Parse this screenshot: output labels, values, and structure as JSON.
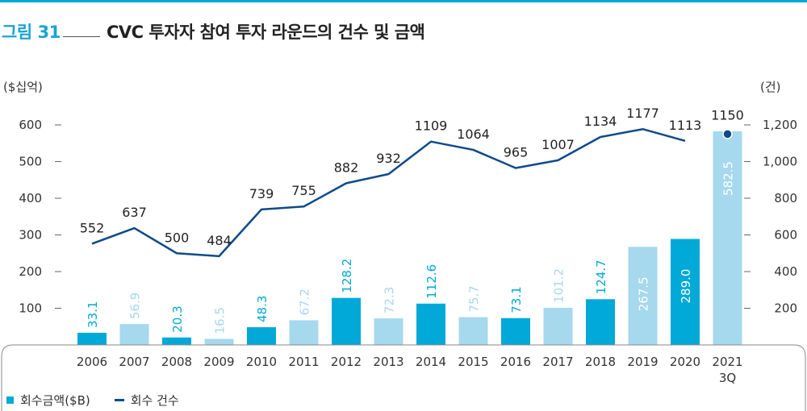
{
  "header": {
    "figure_label": "그림 31",
    "title": "CVC 투자자 참여 투자 라운드의 건수 및 금액"
  },
  "legend": {
    "bar_label": "회수금액($B)",
    "line_label": "회수 건수"
  },
  "colors": {
    "bar_dark": "#00a9d7",
    "bar_light": "#a6d8ee",
    "line": "#0f4a8a",
    "accent": "#1aa3d6"
  },
  "chart_data": {
    "type": "bar",
    "left_unit": "($십억)",
    "right_unit": "(건)",
    "categories": [
      "2006",
      "2007",
      "2008",
      "2009",
      "2010",
      "2011",
      "2012",
      "2013",
      "2014",
      "2015",
      "2016",
      "2017",
      "2018",
      "2019",
      "2020",
      "2021\n3Q"
    ],
    "series": [
      {
        "name": "회수금액($B)",
        "type": "bar",
        "axis": "left",
        "values": [
          33.1,
          56.9,
          20.3,
          16.5,
          48.3,
          67.2,
          128.2,
          72.3,
          112.6,
          75.7,
          73.1,
          101.2,
          124.7,
          267.5,
          289.0,
          582.5
        ],
        "labels": [
          "33.1",
          "56.9",
          "20.3",
          "16.5",
          "48.3",
          "67.2",
          "128.2",
          "72.3",
          "112.6",
          "75.7",
          "73.1",
          "101.2",
          "124.7",
          "267.5",
          "289.0",
          "582.5"
        ],
        "shade": [
          "dark",
          "light",
          "dark",
          "light",
          "dark",
          "light",
          "dark",
          "light",
          "dark",
          "light",
          "dark",
          "light",
          "dark",
          "light",
          "dark",
          "light"
        ]
      },
      {
        "name": "회수 건수",
        "type": "line",
        "axis": "right",
        "values": [
          552,
          637,
          500,
          484,
          739,
          755,
          882,
          932,
          1109,
          1064,
          965,
          1007,
          1134,
          1177,
          1113,
          1150
        ],
        "labels": [
          "552",
          "637",
          "500",
          "484",
          "739",
          "755",
          "882",
          "932",
          "1109",
          "1064",
          "965",
          "1007",
          "1134",
          "1177",
          "1113",
          "1150"
        ],
        "marker_only_last": true
      }
    ],
    "left_axis": {
      "ticks": [
        100,
        200,
        300,
        400,
        500,
        600
      ],
      "tick_labels": [
        "100",
        "200",
        "300",
        "400",
        "500",
        "600"
      ],
      "range": [
        0,
        600
      ]
    },
    "right_axis": {
      "ticks": [
        200,
        400,
        600,
        800,
        1000,
        1200
      ],
      "tick_labels": [
        "200",
        "400",
        "600",
        "800",
        "1,000",
        "1,200"
      ],
      "range": [
        0,
        1200
      ]
    },
    "grid": false,
    "legend_position": "bottom-left"
  }
}
